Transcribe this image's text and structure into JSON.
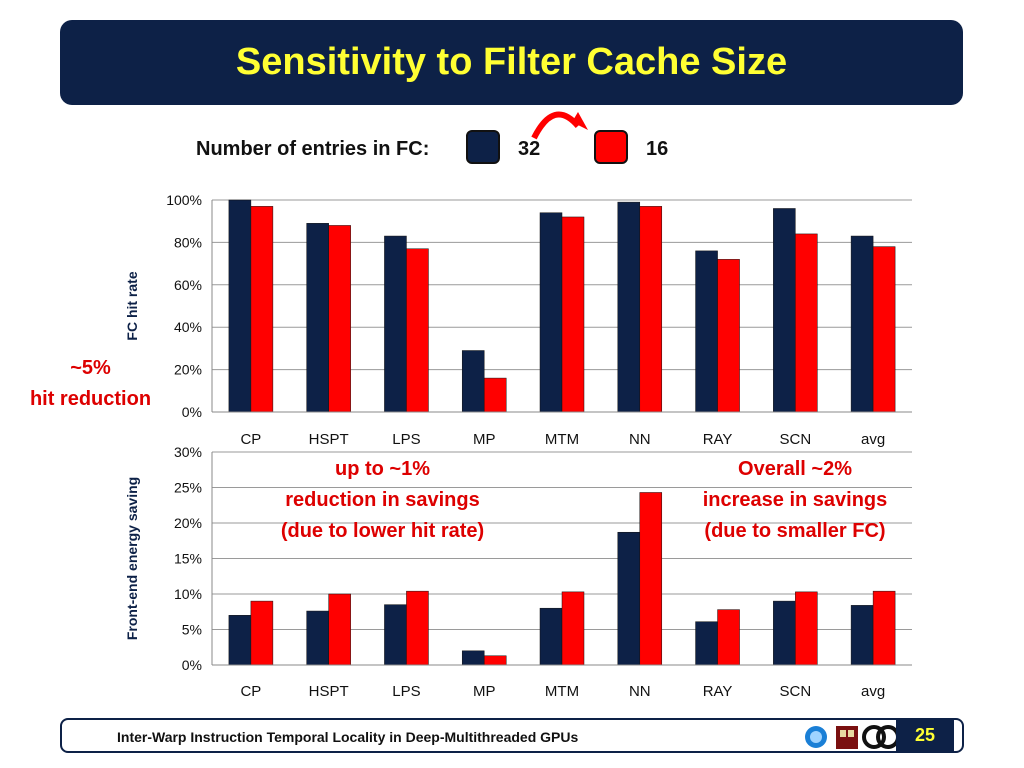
{
  "slide": {
    "title": "Sensitivity to Filter Cache Size",
    "legend": {
      "label": "Number of entries in FC:",
      "value_a": "32",
      "value_b": "16"
    },
    "notes": {
      "left_line1": "~5%",
      "left_line2": "hit reduction",
      "a_line1": "up to ~1%",
      "a_line2": "reduction in savings",
      "a_line3": "(due to lower hit rate)",
      "b_line1": "Overall ~2%",
      "b_line2": "increase in savings",
      "b_line3": "(due to smaller FC)"
    },
    "footer": {
      "text": "Inter-Warp Instruction Temporal Locality in Deep-Multithreaded GPUs",
      "page": "25"
    },
    "colors": {
      "navy": "#0d2147",
      "red": "#ff0000",
      "title_yellow": "#ffff33",
      "annot_red": "#dd0000"
    }
  },
  "chart_data": [
    {
      "type": "bar",
      "ylabel": "FC hit rate",
      "categories": [
        "CP",
        "HSPT",
        "LPS",
        "MP",
        "MTM",
        "NN",
        "RAY",
        "SCN",
        "avg"
      ],
      "series": [
        {
          "name": "32",
          "values": [
            100,
            89,
            83,
            29,
            94,
            99,
            76,
            96,
            83
          ]
        },
        {
          "name": "16",
          "values": [
            97,
            88,
            77,
            16,
            92,
            97,
            72,
            84,
            78
          ]
        }
      ],
      "ylim": [
        0,
        100
      ],
      "yticks": [
        0,
        20,
        40,
        60,
        80,
        100
      ],
      "tick_suffix": "%",
      "grid": true
    },
    {
      "type": "bar",
      "ylabel": "Front-end energy saving",
      "categories": [
        "CP",
        "HSPT",
        "LPS",
        "MP",
        "MTM",
        "NN",
        "RAY",
        "SCN",
        "avg"
      ],
      "series": [
        {
          "name": "32",
          "values": [
            7.0,
            7.6,
            8.5,
            2.0,
            8.0,
            18.7,
            6.1,
            9.0,
            8.4
          ]
        },
        {
          "name": "16",
          "values": [
            9.0,
            10.0,
            10.4,
            1.3,
            10.3,
            24.3,
            7.8,
            10.3,
            10.4
          ]
        }
      ],
      "ylim": [
        0,
        30
      ],
      "yticks": [
        0,
        5,
        10,
        15,
        20,
        25,
        30
      ],
      "tick_suffix": "%",
      "grid": true
    }
  ]
}
